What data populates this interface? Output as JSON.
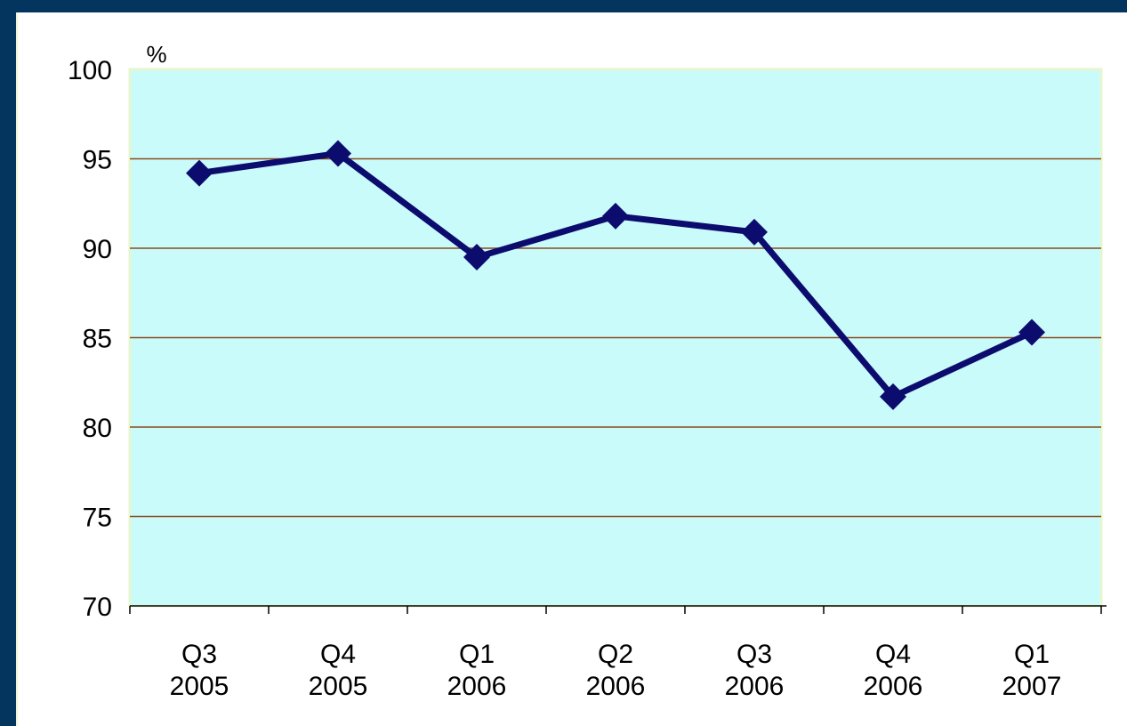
{
  "chart_data": {
    "type": "line",
    "title": "",
    "xlabel": "",
    "ylabel": "%",
    "ylim": [
      70,
      100
    ],
    "yticks": [
      70,
      75,
      80,
      85,
      90,
      95,
      100
    ],
    "categories": [
      [
        "Q3",
        "2005"
      ],
      [
        "Q4",
        "2005"
      ],
      [
        "Q1",
        "2006"
      ],
      [
        "Q2",
        "2006"
      ],
      [
        "Q3",
        "2006"
      ],
      [
        "Q4",
        "2006"
      ],
      [
        "Q1",
        "2007"
      ]
    ],
    "series": [
      {
        "values": [
          94.2,
          95.3,
          89.5,
          91.8,
          90.9,
          81.7,
          85.3
        ]
      }
    ],
    "grid": true,
    "legend": "none",
    "colors": {
      "line": "#0c0c6e",
      "plot_background": "#c9fbfb",
      "plot_border": "#e6f6cf",
      "gridline": "#8b4a1e",
      "outer_background": "#04355f"
    }
  }
}
